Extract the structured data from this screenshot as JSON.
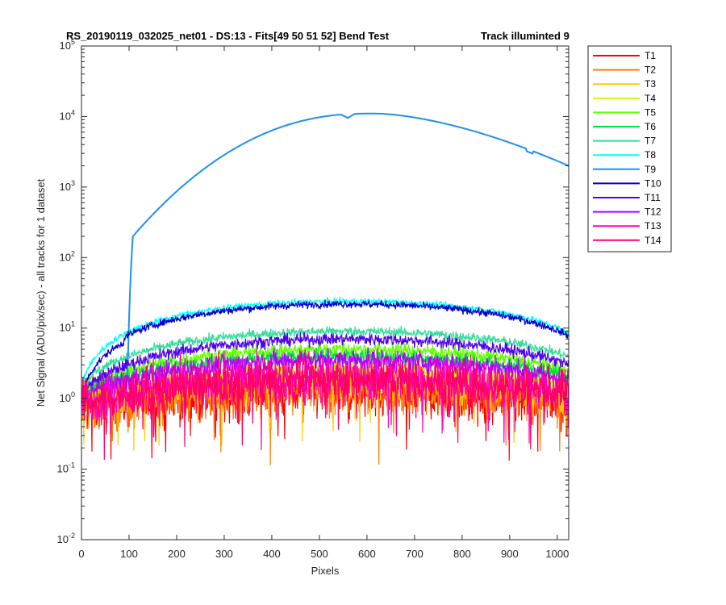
{
  "chart_data": {
    "type": "line",
    "title_parts": [
      "RS_20190119_032025_net01 - DS:13 - Fits[49  50  51  52]   Bend Test",
      "Track illuminted 9"
    ],
    "xlabel": "Pixels",
    "ylabel": "Net Signal (ADU/pix/sec) - all tracks for 1 dataset",
    "xlim": [
      0,
      1024
    ],
    "ylim": [
      0.01,
      100000
    ],
    "yscale": "log",
    "x_ticks": [
      0,
      100,
      200,
      300,
      400,
      500,
      600,
      700,
      800,
      900,
      1000
    ],
    "x_tick_labels": [
      "0",
      "100",
      "200",
      "300",
      "400",
      "500",
      "600",
      "700",
      "800",
      "900",
      "1000"
    ],
    "y_tick_exponents": [
      "-2",
      "-1",
      "0",
      "1",
      "2",
      "3",
      "4",
      "5"
    ],
    "y_tick_base": "10",
    "legend_position": "outside-right-top",
    "series": [
      {
        "name": "T1",
        "color": "#ff0000",
        "peak": 1.3,
        "edge": 0.75,
        "noise": 0.45
      },
      {
        "name": "T2",
        "color": "#ff8000",
        "peak": 1.4,
        "edge": 0.8,
        "noise": 0.42
      },
      {
        "name": "T3",
        "color": "#ffcc00",
        "peak": 1.7,
        "edge": 0.85,
        "noise": 0.3
      },
      {
        "name": "T4",
        "color": "#ccff00",
        "peak": 2.2,
        "edge": 0.95,
        "noise": 0.22
      },
      {
        "name": "T5",
        "color": "#66ff00",
        "peak": 5.0,
        "edge": 1.3,
        "noise": 0.12
      },
      {
        "name": "T6",
        "color": "#00e040",
        "peak": 4.0,
        "edge": 1.2,
        "noise": 0.12
      },
      {
        "name": "T7",
        "color": "#33dd99",
        "peak": 9.0,
        "edge": 1.6,
        "noise": 0.08
      },
      {
        "name": "T8",
        "color": "#00ffff",
        "peak": 24.0,
        "edge": 1.6,
        "noise": 0.05
      },
      {
        "name": "T9",
        "color": "#1e90f0",
        "peak": 11000,
        "edge": 2000,
        "noise": 0.0
      },
      {
        "name": "T10",
        "color": "#0000cc",
        "peak": 22.0,
        "edge": 1.3,
        "noise": 0.06
      },
      {
        "name": "T11",
        "color": "#5000f0",
        "peak": 7.0,
        "edge": 1.2,
        "noise": 0.1
      },
      {
        "name": "T12",
        "color": "#b000ff",
        "peak": 3.5,
        "edge": 1.05,
        "noise": 0.18
      },
      {
        "name": "T13",
        "color": "#ff00cc",
        "peak": 2.0,
        "edge": 0.9,
        "noise": 0.35
      },
      {
        "name": "T14",
        "color": "#ff0066",
        "peak": 1.8,
        "edge": 0.85,
        "noise": 0.38
      }
    ]
  }
}
